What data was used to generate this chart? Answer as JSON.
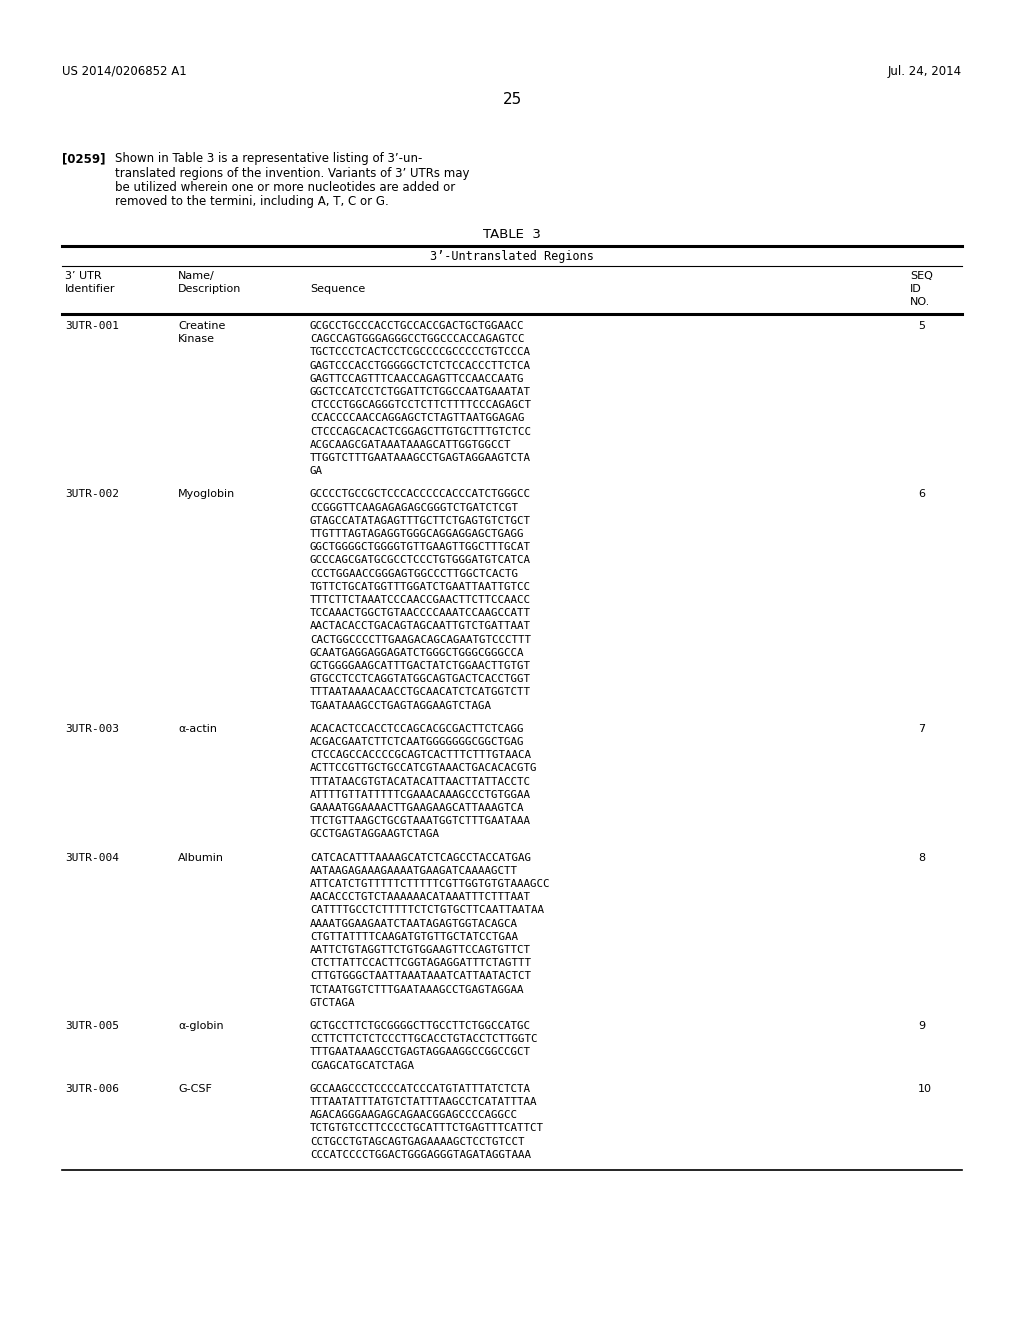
{
  "header_left": "US 2014/0206852 A1",
  "header_right": "Jul. 24, 2014",
  "page_number": "25",
  "paragraph_label": "[0259]",
  "paragraph_text": "Shown in Table 3 is a representative listing of 3’-un-\ntranslated regions of the invention. Variants of 3’ UTRs may\nbe utilized wherein one or more nucleotides are added or\nremoved to the termini, including A, T, C or G.",
  "table_title": "TABLE  3",
  "table_subtitle": "3’-Untranslated Regions",
  "col1_header": "3’ UTR\nIdentifier",
  "col2_header": "Name/\nDescription",
  "col3_header": "Sequence",
  "col4_header": "SEQ\nID\nNO.",
  "rows": [
    {
      "id": "3UTR-001",
      "name": "Creatine\nKinase",
      "sequence": "GCGCCTGCCCACCTGCCACCGACTGCTGGAACC\nCAGCCAGTGGGAGGGCCTGGCCCACCAGAGTCC\nTGCTCCCTCACTCCTCGCCCCGCCCCCTGTCCCA\nGAGTCCCACCTGGGGGCTCTCTCCACCCTTCTCA\nGAGTTCCAGTTTCAACCAGAGTTCCAACCAATG\nGGCTCCATCCTCTGGATTCTGGCCAATGAAATAT\nCTCCCTGGCAGGGTCCTCTTCTTTTCCCAGAGCT\nCCACCCCAACCAGGAGCTCTAGTTAATGGAGAG\nCTCCCAGCACACTCGGAGCTTGTGCTTTGTCTCC\nACGCAAGCGATAAATAAAGCATTGGTGGCCT\nTTGGTCTTTGAATAAAGCCTGAGTAGGAAGTCTA\nGA",
      "seq_id": "5"
    },
    {
      "id": "3UTR-002",
      "name": "Myoglobin",
      "sequence": "GCCCCTGCCGCTCCCACCCCCACCCATCTGGGCC\nCCGGGTTCAAGAGAGAGCGGGTCTGATCTCGT\nGTAGCCATATAGAGTTTGCTTCTGAGTGTCTGCT\nTTGTTTAGTAGAGGTGGGCAGGAGGAGCTGAGG\nGGCTGGGGCTGGGGTGTTGAAGTTGGCTTTGCAT\nGCCCAGCGATGCGCCTCCCTGTGGGATGTCATCA\nCCCTGGAACCGGGAGTGGCCCTTGGCTCACTG\nTGTTCTGCATGGTTTGGATCTGAATTAATTGTCC\nTTTCTTCTAAATCCCAACCGAACTTCTTCCAACC\nTCCAAACTGGCTGTAACCCCAAATCCAAGCCATT\nAACTACACCTGACAGTAGCAATTGTCTGATTAAT\nCACTGGCCCCTTGAAGACAGCAGAATGTCCCTTT\nGCAATGAGGAGGAGATCTGGGCTGGGCGGGCCA\nGCTGGGGAAGCATTTGACTATCTGGAACTTGTGT\nGTGCCTCCTCAGGTATGGCAGTGACTCACCTGGT\nTTTAATAAAACAACCTGCAACATCTCATGGTCTT\nTGAATAAAGCCTGAGTAGGAAGTCTAGA",
      "seq_id": "6"
    },
    {
      "id": "3UTR-003",
      "name": "α-actin",
      "sequence": "ACACACTCCACCTCCAGCACGCGACTTCTCAGG\nACGACGAATCTTCTCAATGGGGGGGCGGCTGAG\nCTCCAGCCACCCCGCAGTCACTTTCTTTGTAACA\nACTTCCGTTGCTGCCATCGTAAACTGACACACGTG\nTTTATAACGTGTACATACATTAACTTATTACCTC\nATTTTGTTATTTTTCGAAACAAAGCCCTGTGGAA\nGAAAATGGAAAACTTGAAGAAGCATTAAAGTCA\nTTCTGTTAAGCTGCGTAAATGGTCTTTGAATAAA\nGCCTGAGTAGGAAGTCTAGA",
      "seq_id": "7"
    },
    {
      "id": "3UTR-004",
      "name": "Albumin",
      "sequence": "CATCACATTTAAAAGCATCTCAGCCTACCATGAG\nAATAAGAGAAAGAAAATGAAGATCAAAAGCTT\nATTCATCTGTTTTTCTTTTTCGTTGGTGTGTAAAGCC\nAACACCCTGTCTAAAAAACATAAATTTCTTTAAT\nCATTTTGCCTCTTTTTCTCTGTGCTTCAATTAATAA\nAAAATGGAAGAATCTAATAGAGTGGTACAGCA\nCTGTTATTTTCAAGATGTGTTGCTATCCTGAA\nAATTCTGTAGGTTCTGTGGAAGTTCCAGTGTTCT\nCTCTTATTCCACTTCGGTAGAGGATTTCTAGTTT\nCTTGTGGGCTAATTAAATAAATCATTAATACTCT\nTCTAATGGTCTTTGAATAAAGCCTGAGTAGGAA\nGTCTAGA",
      "seq_id": "8"
    },
    {
      "id": "3UTR-005",
      "name": "α-globin",
      "sequence": "GCTGCCTTCTGCGGGGCTTGCCTTCTGGCCATGC\nCCTTCTTCTCTCCCTTGCACCTGTACCTCTTGGTC\nTTTGAATAAAGCCTGAGTAGGAAGGCCGGCCGCT\nCGAGCATGCATCTAGA",
      "seq_id": "9"
    },
    {
      "id": "3UTR-006",
      "name": "G-CSF",
      "sequence": "GCCAAGCCCTCCCCATCCCATGTATTTATCTCTA\nTTTAATATTTATGTCTATTTAAGCCTCATATTTAA\nAGACAGGGAAGAGCAGAACGGAGCCCCAGGCC\nTCTGTGTCCTTCCCCTGCATTTCTGAGTTTCATTCT\nCCTGCCTGTAGCAGTGAGAAAAGCTCCTGTCCT\nCCCATCCCCTGGACTGGGAGGGTAGATAGGTAAA",
      "seq_id": "10"
    }
  ],
  "bg_color": "#ffffff",
  "text_color": "#000000"
}
